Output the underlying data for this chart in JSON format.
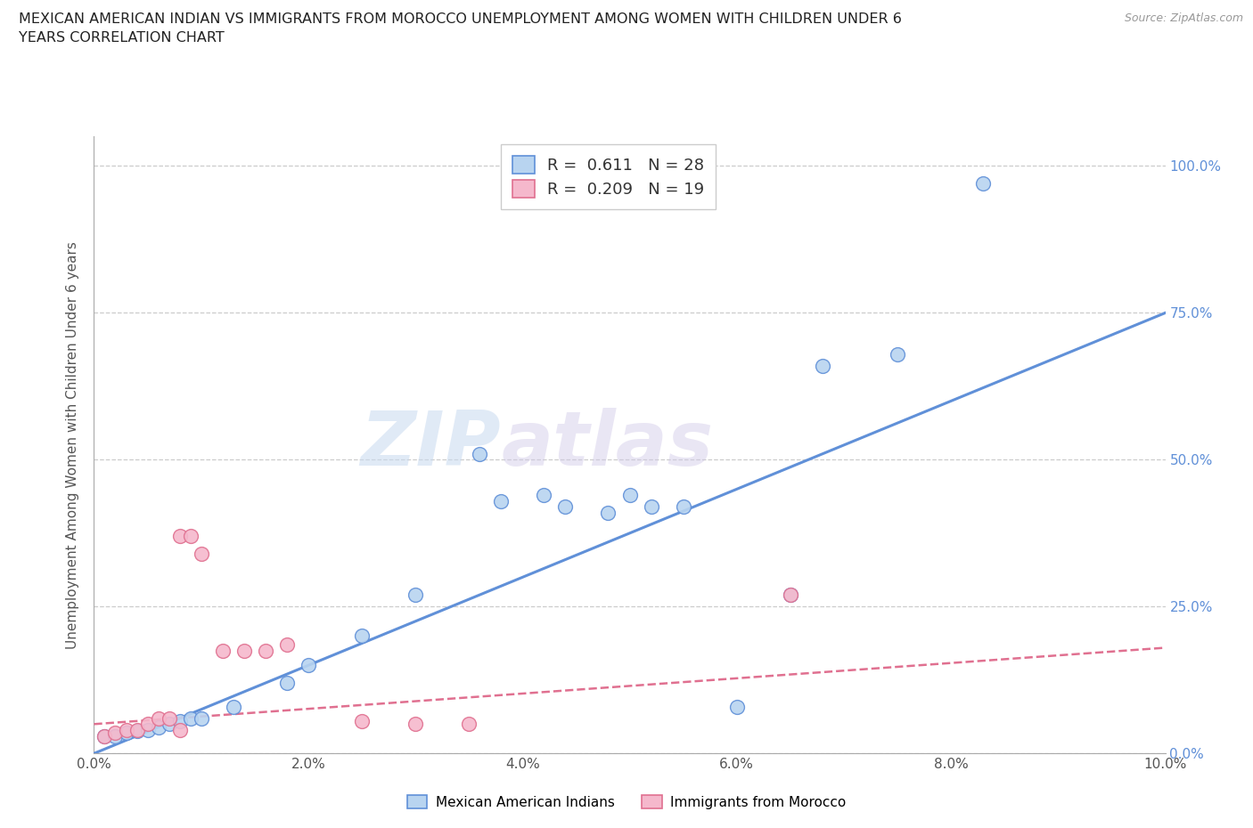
{
  "title_line1": "MEXICAN AMERICAN INDIAN VS IMMIGRANTS FROM MOROCCO UNEMPLOYMENT AMONG WOMEN WITH CHILDREN UNDER 6",
  "title_line2": "YEARS CORRELATION CHART",
  "source": "Source: ZipAtlas.com",
  "ylabel": "Unemployment Among Women with Children Under 6 years",
  "xmin": 0.0,
  "xmax": 0.1,
  "ymin": 0.0,
  "ymax": 1.05,
  "yticks": [
    0.0,
    0.25,
    0.5,
    0.75,
    1.0
  ],
  "ytick_labels_right": [
    "0.0%",
    "25.0%",
    "50.0%",
    "75.0%",
    "100.0%"
  ],
  "xticks": [
    0.0,
    0.02,
    0.04,
    0.06,
    0.08,
    0.1
  ],
  "xtick_labels": [
    "0.0%",
    "2.0%",
    "4.0%",
    "6.0%",
    "8.0%",
    "10.0%"
  ],
  "watermark_zip": "ZIP",
  "watermark_atlas": "atlas",
  "blue_R": "0.611",
  "blue_N": "28",
  "pink_R": "0.209",
  "pink_N": "19",
  "blue_fill": "#b8d4f0",
  "pink_fill": "#f5b8cc",
  "blue_edge": "#6090d8",
  "pink_edge": "#e07090",
  "blue_line": "#6090d8",
  "pink_line": "#e07090",
  "grid_color": "#cccccc",
  "blue_scatter": [
    [
      0.001,
      0.03
    ],
    [
      0.002,
      0.03
    ],
    [
      0.003,
      0.035
    ],
    [
      0.004,
      0.038
    ],
    [
      0.005,
      0.04
    ],
    [
      0.006,
      0.045
    ],
    [
      0.007,
      0.05
    ],
    [
      0.008,
      0.055
    ],
    [
      0.009,
      0.06
    ],
    [
      0.01,
      0.06
    ],
    [
      0.013,
      0.08
    ],
    [
      0.018,
      0.12
    ],
    [
      0.02,
      0.15
    ],
    [
      0.025,
      0.2
    ],
    [
      0.03,
      0.27
    ],
    [
      0.036,
      0.51
    ],
    [
      0.038,
      0.43
    ],
    [
      0.042,
      0.44
    ],
    [
      0.044,
      0.42
    ],
    [
      0.048,
      0.41
    ],
    [
      0.05,
      0.44
    ],
    [
      0.052,
      0.42
    ],
    [
      0.055,
      0.42
    ],
    [
      0.06,
      0.08
    ],
    [
      0.065,
      0.27
    ],
    [
      0.068,
      0.66
    ],
    [
      0.075,
      0.68
    ],
    [
      0.083,
      0.97
    ]
  ],
  "pink_scatter": [
    [
      0.001,
      0.03
    ],
    [
      0.002,
      0.035
    ],
    [
      0.003,
      0.04
    ],
    [
      0.004,
      0.04
    ],
    [
      0.005,
      0.05
    ],
    [
      0.006,
      0.06
    ],
    [
      0.007,
      0.06
    ],
    [
      0.008,
      0.04
    ],
    [
      0.008,
      0.37
    ],
    [
      0.009,
      0.37
    ],
    [
      0.01,
      0.34
    ],
    [
      0.012,
      0.175
    ],
    [
      0.014,
      0.175
    ],
    [
      0.016,
      0.175
    ],
    [
      0.018,
      0.185
    ],
    [
      0.025,
      0.055
    ],
    [
      0.03,
      0.05
    ],
    [
      0.035,
      0.05
    ],
    [
      0.065,
      0.27
    ]
  ],
  "blue_trend_x": [
    0.0,
    0.1
  ],
  "blue_trend_y": [
    0.0,
    0.75
  ],
  "pink_trend_x": [
    0.0,
    0.1
  ],
  "pink_trend_y": [
    0.05,
    0.18
  ]
}
